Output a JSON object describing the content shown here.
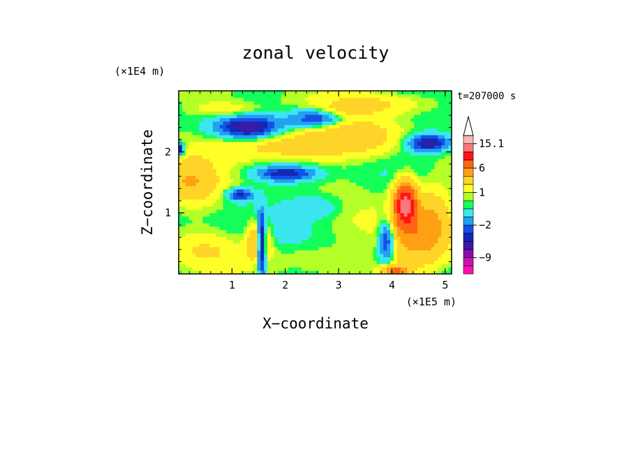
{
  "chart_data": {
    "type": "heatmap",
    "title": "zonal velocity",
    "xlabel": "X−coordinate",
    "ylabel": "Z−coordinate",
    "x_unit": "(×1E5 m)",
    "y_unit": "(×1E4 m)",
    "time_label": "t=207000 s",
    "xlim": [
      0,
      5.12
    ],
    "ylim": [
      0,
      3.0
    ],
    "x_ticks": [
      1,
      2,
      3,
      4,
      5
    ],
    "y_ticks": [
      1,
      2
    ],
    "colorbar": {
      "levels": [
        -15.1,
        -12,
        -9,
        -6,
        -4,
        -3,
        -2,
        -1,
        0,
        0.5,
        1,
        2,
        4,
        6,
        9,
        12,
        15.1
      ],
      "colors": [
        "#ff0fb4",
        "#ca0fb4",
        "#8a0fa8",
        "#3c1aa8",
        "#1428b4",
        "#1450e6",
        "#23a0f0",
        "#3ce6f0",
        "#14ff5a",
        "#b4ff28",
        "#ffff28",
        "#ffd428",
        "#ffa014",
        "#ff6414",
        "#ff1414",
        "#ff7878",
        "#ffb4b4"
      ],
      "tick_labels": [
        "15.1",
        "6",
        "1",
        "−2",
        "−9"
      ],
      "tick_values": [
        15.1,
        6,
        1,
        -2,
        -9
      ],
      "extend": "max"
    },
    "grid": false
  }
}
